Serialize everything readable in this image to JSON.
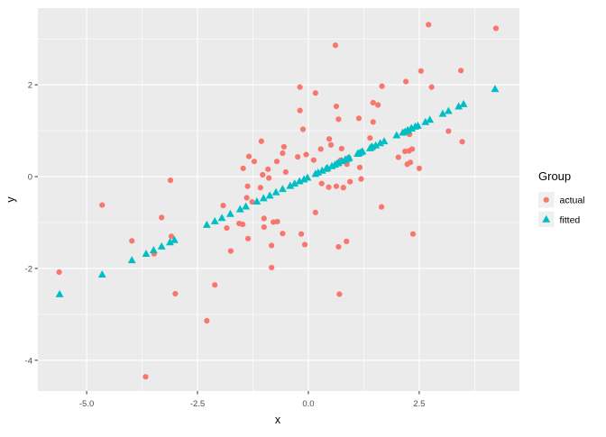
{
  "figure": {
    "background": "#FFFFFF",
    "panel_background": "#EBEBEB",
    "grid_color": "#FFFFFF",
    "tick_mark_color": "#333333",
    "tick_label_color": "#4D4D4D"
  },
  "chart_data": {
    "type": "scatter",
    "title": "",
    "xlabel": "x",
    "ylabel": "y",
    "xlim": [
      -6.1,
      4.76
    ],
    "ylim": [
      -4.67,
      3.67
    ],
    "grid": true,
    "x_ticks": {
      "values": [
        -5.0,
        -2.5,
        0.0,
        2.5
      ],
      "labels": [
        "-5.0",
        "-2.5",
        "0.0",
        "2.5"
      ]
    },
    "y_ticks": {
      "values": [
        -4,
        -2,
        0,
        2
      ],
      "labels": [
        "-4",
        "-2",
        "0",
        "2"
      ]
    },
    "x_minor_gridlines": [
      -3.75,
      -1.25,
      1.25,
      3.75
    ],
    "y_minor_gridlines": [
      -3,
      -1,
      1,
      3
    ],
    "legend": {
      "title": "Group",
      "position": "right",
      "entries": [
        {
          "label": "actual",
          "marker": "circle",
          "color": "#F8766D"
        },
        {
          "label": "fitted",
          "marker": "triangle",
          "color": "#00BFC4"
        }
      ]
    },
    "series": [
      {
        "name": "actual",
        "marker": "circle",
        "color": "#F8766D",
        "points": [
          [
            2.71,
            3.31
          ],
          [
            4.23,
            3.23
          ],
          [
            0.61,
            2.86
          ],
          [
            3.44,
            2.31
          ],
          [
            2.54,
            2.3
          ],
          [
            2.2,
            2.07
          ],
          [
            1.66,
            1.97
          ],
          [
            2.78,
            1.95
          ],
          [
            -0.19,
            1.95
          ],
          [
            0.16,
            1.82
          ],
          [
            1.46,
            1.61
          ],
          [
            1.57,
            1.56
          ],
          [
            0.63,
            1.53
          ],
          [
            -0.19,
            1.44
          ],
          [
            1.14,
            1.27
          ],
          [
            0.68,
            1.25
          ],
          [
            1.46,
            1.19
          ],
          [
            -0.12,
            1.03
          ],
          [
            3.16,
            0.99
          ],
          [
            2.28,
            0.92
          ],
          [
            1.39,
            0.84
          ],
          [
            0.47,
            0.82
          ],
          [
            -1.06,
            0.77
          ],
          [
            3.47,
            0.76
          ],
          [
            0.51,
            0.69
          ],
          [
            -0.55,
            0.65
          ],
          [
            0.75,
            0.61
          ],
          [
            0.28,
            0.6
          ],
          [
            2.34,
            0.6
          ],
          [
            2.27,
            0.56
          ],
          [
            2.18,
            0.55
          ],
          [
            -0.58,
            0.51
          ],
          [
            -0.05,
            0.48
          ],
          [
            -1.34,
            0.44
          ],
          [
            -0.24,
            0.43
          ],
          [
            2.03,
            0.42
          ],
          [
            0.91,
            0.41
          ],
          [
            0.73,
            0.36
          ],
          [
            0.12,
            0.36
          ],
          [
            -1.22,
            0.33
          ],
          [
            -0.71,
            0.33
          ],
          [
            2.3,
            0.31
          ],
          [
            0.87,
            0.27
          ],
          [
            2.23,
            0.27
          ],
          [
            -1.47,
            0.18
          ],
          [
            1.16,
            0.2
          ],
          [
            2.5,
            0.18
          ],
          [
            -0.91,
            0.16
          ],
          [
            -0.51,
            0.1
          ],
          [
            -1.03,
            0.04
          ],
          [
            -0.89,
            -0.03
          ],
          [
            1.19,
            -0.05
          ],
          [
            -3.11,
            -0.08
          ],
          [
            0.94,
            -0.11
          ],
          [
            0.3,
            -0.15
          ],
          [
            -1.37,
            -0.21
          ],
          [
            0.63,
            -0.21
          ],
          [
            -1.08,
            -0.24
          ],
          [
            0.46,
            -0.23
          ],
          [
            0.79,
            -0.24
          ],
          [
            -1.39,
            -0.46
          ],
          [
            -1.27,
            -0.55
          ],
          [
            -4.65,
            -0.62
          ],
          [
            -1.92,
            -0.63
          ],
          [
            1.65,
            -0.66
          ],
          [
            0.16,
            -0.78
          ],
          [
            -3.31,
            -0.89
          ],
          [
            -1.0,
            -0.91
          ],
          [
            -0.79,
            -0.99
          ],
          [
            -0.7,
            -0.98
          ],
          [
            -1.56,
            -1.02
          ],
          [
            -1.48,
            -1.04
          ],
          [
            -1.0,
            -1.1
          ],
          [
            -1.84,
            -1.12
          ],
          [
            -0.58,
            -1.24
          ],
          [
            -0.16,
            -1.25
          ],
          [
            2.36,
            -1.25
          ],
          [
            -3.09,
            -1.3
          ],
          [
            -1.36,
            -1.35
          ],
          [
            -3.98,
            -1.4
          ],
          [
            0.86,
            -1.41
          ],
          [
            -0.08,
            -1.48
          ],
          [
            -0.83,
            -1.5
          ],
          [
            0.68,
            -1.53
          ],
          [
            -1.75,
            -1.62
          ],
          [
            -3.48,
            -1.68
          ],
          [
            -0.83,
            -1.98
          ],
          [
            -5.62,
            -2.08
          ],
          [
            -2.11,
            -2.36
          ],
          [
            -3.0,
            -2.55
          ],
          [
            0.7,
            -2.56
          ],
          [
            -2.29,
            -3.14
          ],
          [
            -3.67,
            -4.36
          ]
        ]
      },
      {
        "name": "fitted",
        "marker": "triangle",
        "color": "#00BFC4",
        "points": [
          [
            -5.61,
            -2.56
          ],
          [
            -4.65,
            -2.13
          ],
          [
            -3.98,
            -1.82
          ],
          [
            -3.66,
            -1.68
          ],
          [
            -3.49,
            -1.6
          ],
          [
            -3.31,
            -1.52
          ],
          [
            -3.12,
            -1.43
          ],
          [
            -3.02,
            -1.38
          ],
          [
            -2.29,
            -1.05
          ],
          [
            -2.11,
            -0.97
          ],
          [
            -1.95,
            -0.9
          ],
          [
            -1.76,
            -0.81
          ],
          [
            -1.54,
            -0.71
          ],
          [
            -1.41,
            -0.65
          ],
          [
            -1.16,
            -0.54
          ],
          [
            -1.01,
            -0.47
          ],
          [
            -0.87,
            -0.41
          ],
          [
            -0.73,
            -0.34
          ],
          [
            -0.58,
            -0.27
          ],
          [
            -0.41,
            -0.2
          ],
          [
            -0.31,
            -0.15
          ],
          [
            -0.2,
            -0.1
          ],
          [
            -0.1,
            -0.06
          ],
          [
            -0.02,
            -0.02
          ],
          [
            0.16,
            0.06
          ],
          [
            0.22,
            0.09
          ],
          [
            0.31,
            0.13
          ],
          [
            0.4,
            0.17
          ],
          [
            0.43,
            0.19
          ],
          [
            0.53,
            0.23
          ],
          [
            0.6,
            0.26
          ],
          [
            0.65,
            0.29
          ],
          [
            0.68,
            0.3
          ],
          [
            0.76,
            0.34
          ],
          [
            0.83,
            0.37
          ],
          [
            0.84,
            0.37
          ],
          [
            0.89,
            0.39
          ],
          [
            0.92,
            0.41
          ],
          [
            1.11,
            0.5
          ],
          [
            1.14,
            0.51
          ],
          [
            1.18,
            0.53
          ],
          [
            1.22,
            0.55
          ],
          [
            1.39,
            0.62
          ],
          [
            1.42,
            0.64
          ],
          [
            1.44,
            0.65
          ],
          [
            1.52,
            0.68
          ],
          [
            1.62,
            0.73
          ],
          [
            1.71,
            0.77
          ],
          [
            1.99,
            0.9
          ],
          [
            2.13,
            0.96
          ],
          [
            2.18,
            0.98
          ],
          [
            2.23,
            1.0
          ],
          [
            2.25,
            1.01
          ],
          [
            2.32,
            1.05
          ],
          [
            2.33,
            1.05
          ],
          [
            2.41,
            1.09
          ],
          [
            2.47,
            1.11
          ],
          [
            2.64,
            1.19
          ],
          [
            2.74,
            1.24
          ],
          [
            3.03,
            1.37
          ],
          [
            3.16,
            1.43
          ],
          [
            3.39,
            1.53
          ],
          [
            3.5,
            1.58
          ],
          [
            4.21,
            1.91
          ]
        ]
      }
    ]
  }
}
